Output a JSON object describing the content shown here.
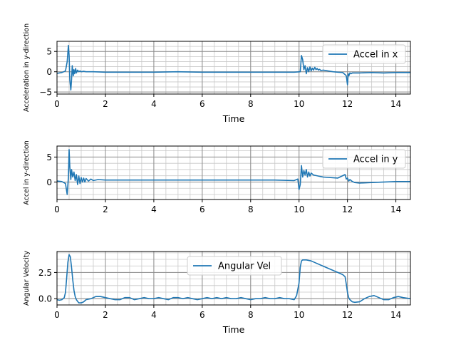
{
  "chart_data": [
    {
      "type": "line",
      "xlabel": "Time",
      "ylabel": "Acceleration in y-direction",
      "xlim": [
        0,
        14.6
      ],
      "ylim": [
        -5.5,
        7.5
      ],
      "xticks": [
        0,
        2,
        4,
        6,
        8,
        10,
        12,
        14
      ],
      "xtick_labels": [
        "0",
        "2",
        "4",
        "6",
        "8",
        "10",
        "12",
        "14"
      ],
      "yticks": [
        -5,
        0,
        5
      ],
      "ytick_labels": [
        "−5",
        "0",
        "5"
      ],
      "minor_grid": true,
      "legend_position": "top-right",
      "color": "#1f77b4",
      "series": [
        {
          "name": "Accel in x",
          "x": [
            0,
            0.2,
            0.35,
            0.42,
            0.47,
            0.5,
            0.53,
            0.57,
            0.6,
            0.63,
            0.67,
            0.7,
            0.73,
            0.77,
            0.8,
            0.85,
            0.9,
            0.95,
            1.0,
            1.1,
            1.2,
            1.5,
            2.0,
            3.0,
            4.0,
            5.0,
            6.0,
            7.0,
            8.0,
            9.0,
            9.8,
            10.05,
            10.1,
            10.15,
            10.2,
            10.25,
            10.3,
            10.35,
            10.4,
            10.45,
            10.5,
            10.55,
            10.6,
            10.65,
            10.7,
            10.75,
            10.8,
            10.85,
            10.9,
            11.0,
            11.2,
            11.4,
            11.6,
            11.8,
            11.92,
            11.95,
            12.0,
            12.03,
            12.06,
            12.1,
            12.15,
            12.2,
            12.3,
            12.5,
            13.0,
            13.5,
            14.0,
            14.6
          ],
          "y": [
            -0.4,
            -0.2,
            0.2,
            2.5,
            6.5,
            4.0,
            -2.0,
            -4.5,
            -2.0,
            1.5,
            -1.0,
            0.5,
            -0.5,
            0.8,
            -0.3,
            0.4,
            0.0,
            0.2,
            0.0,
            0.1,
            0.0,
            0.0,
            -0.1,
            -0.1,
            -0.1,
            0.0,
            -0.1,
            -0.1,
            -0.1,
            -0.1,
            -0.1,
            0.0,
            4.0,
            3.0,
            0.5,
            1.5,
            -0.5,
            1.0,
            0.0,
            1.2,
            0.2,
            0.9,
            0.4,
            1.1,
            0.5,
            0.8,
            0.4,
            0.6,
            0.3,
            0.4,
            0.2,
            0.0,
            -0.1,
            -0.2,
            -0.8,
            -1.0,
            -3.2,
            -0.5,
            -1.0,
            -0.3,
            -0.5,
            -0.3,
            -0.3,
            -0.3,
            -0.2,
            -0.3,
            -0.2,
            -0.2
          ]
        }
      ]
    },
    {
      "type": "line",
      "xlabel": "",
      "ylabel": "Accel in y-direction",
      "xlim": [
        0,
        14.6
      ],
      "ylim": [
        -3.5,
        7.2
      ],
      "xticks": [
        0,
        2,
        4,
        6,
        8,
        10,
        12,
        14
      ],
      "xtick_labels": [
        "0",
        "2",
        "4",
        "6",
        "8",
        "10",
        "12",
        "14"
      ],
      "yticks": [
        0,
        5
      ],
      "ytick_labels": [
        "0",
        "5"
      ],
      "minor_grid": true,
      "legend_position": "top-right",
      "color": "#1f77b4",
      "series": [
        {
          "name": "Accel in y",
          "x": [
            0,
            0.2,
            0.35,
            0.42,
            0.47,
            0.5,
            0.53,
            0.57,
            0.6,
            0.65,
            0.7,
            0.75,
            0.8,
            0.85,
            0.9,
            0.95,
            1.0,
            1.05,
            1.1,
            1.15,
            1.2,
            1.3,
            1.4,
            1.5,
            1.7,
            2.0,
            3.0,
            4.0,
            5.0,
            6.0,
            7.0,
            8.0,
            9.0,
            9.8,
            9.95,
            10.0,
            10.05,
            10.1,
            10.15,
            10.2,
            10.25,
            10.3,
            10.35,
            10.4,
            10.45,
            10.5,
            10.6,
            10.7,
            10.8,
            10.9,
            11.0,
            11.3,
            11.6,
            11.9,
            11.95,
            12.0,
            12.05,
            12.1,
            12.2,
            12.3,
            12.5,
            13.0,
            14.0,
            14.6
          ],
          "y": [
            0.2,
            0.1,
            -0.3,
            -2.5,
            1.0,
            6.5,
            3.0,
            0.5,
            2.5,
            1.0,
            2.0,
            0.3,
            1.5,
            -0.5,
            1.2,
            -0.3,
            0.9,
            0.0,
            0.8,
            0.0,
            0.7,
            0.2,
            0.6,
            0.3,
            0.5,
            0.4,
            0.4,
            0.4,
            0.4,
            0.4,
            0.4,
            0.4,
            0.4,
            0.3,
            0.6,
            -1.5,
            -0.5,
            3.3,
            1.0,
            2.3,
            1.4,
            2.5,
            1.0,
            2.0,
            1.2,
            1.8,
            1.4,
            1.3,
            1.2,
            1.1,
            1.0,
            0.9,
            0.8,
            1.5,
            0.6,
            0.8,
            0.2,
            0.5,
            0.1,
            -0.1,
            -0.2,
            -0.1,
            0.1,
            0.1
          ]
        }
      ]
    },
    {
      "type": "line",
      "xlabel": "Time",
      "ylabel": "Angular Velocity",
      "xlim": [
        0,
        14.6
      ],
      "ylim": [
        -0.6,
        4.5
      ],
      "xticks": [
        0,
        2,
        4,
        6,
        8,
        10,
        12,
        14
      ],
      "xtick_labels": [
        "0",
        "2",
        "4",
        "6",
        "8",
        "10",
        "12",
        "14"
      ],
      "yticks": [
        0.0,
        2.5
      ],
      "ytick_labels": [
        "0.0",
        "2.5"
      ],
      "minor_grid": true,
      "legend_position": "top-center",
      "color": "#1f77b4",
      "series": [
        {
          "name": "Angular Vel",
          "x": [
            0,
            0.1,
            0.2,
            0.3,
            0.35,
            0.4,
            0.45,
            0.5,
            0.55,
            0.6,
            0.65,
            0.7,
            0.75,
            0.8,
            0.9,
            1.0,
            1.1,
            1.2,
            1.4,
            1.6,
            1.8,
            2.0,
            2.2,
            2.4,
            2.6,
            2.8,
            3.0,
            3.2,
            3.4,
            3.6,
            3.8,
            4.0,
            4.2,
            4.4,
            4.6,
            4.8,
            5.0,
            5.2,
            5.4,
            5.6,
            5.8,
            6.0,
            6.2,
            6.4,
            6.6,
            6.8,
            7.0,
            7.2,
            7.4,
            7.6,
            7.8,
            8.0,
            8.2,
            8.4,
            8.6,
            8.8,
            9.0,
            9.2,
            9.4,
            9.6,
            9.8,
            9.9,
            10.0,
            10.05,
            10.1,
            10.15,
            10.2,
            10.3,
            10.5,
            10.7,
            11.0,
            11.3,
            11.6,
            11.8,
            11.9,
            11.95,
            12.0,
            12.05,
            12.1,
            12.2,
            12.3,
            12.5,
            12.7,
            12.9,
            13.1,
            13.3,
            13.5,
            13.7,
            13.9,
            14.1,
            14.3,
            14.6
          ],
          "y": [
            -0.1,
            -0.15,
            -0.1,
            0.1,
            0.6,
            2.0,
            3.5,
            4.2,
            4.0,
            3.0,
            1.8,
            0.8,
            0.2,
            -0.1,
            -0.4,
            -0.4,
            -0.3,
            -0.1,
            0.0,
            0.2,
            0.2,
            0.1,
            0.0,
            -0.1,
            -0.1,
            0.1,
            0.1,
            -0.1,
            0.0,
            0.1,
            0.0,
            0.0,
            0.1,
            0.0,
            -0.1,
            0.1,
            0.1,
            0.0,
            0.1,
            0.0,
            -0.1,
            0.0,
            0.1,
            0.0,
            0.1,
            0.0,
            0.1,
            0.0,
            0.0,
            0.1,
            0.0,
            -0.1,
            0.0,
            0.0,
            0.1,
            0.0,
            0.0,
            0.1,
            0.0,
            0.0,
            -0.1,
            0.3,
            1.5,
            3.0,
            3.6,
            3.7,
            3.7,
            3.7,
            3.6,
            3.4,
            3.1,
            2.8,
            2.5,
            2.3,
            2.1,
            1.4,
            0.6,
            0.1,
            -0.1,
            -0.3,
            -0.35,
            -0.3,
            0.0,
            0.2,
            0.3,
            0.1,
            -0.1,
            -0.1,
            0.1,
            0.2,
            0.1,
            0.0
          ]
        }
      ]
    }
  ]
}
